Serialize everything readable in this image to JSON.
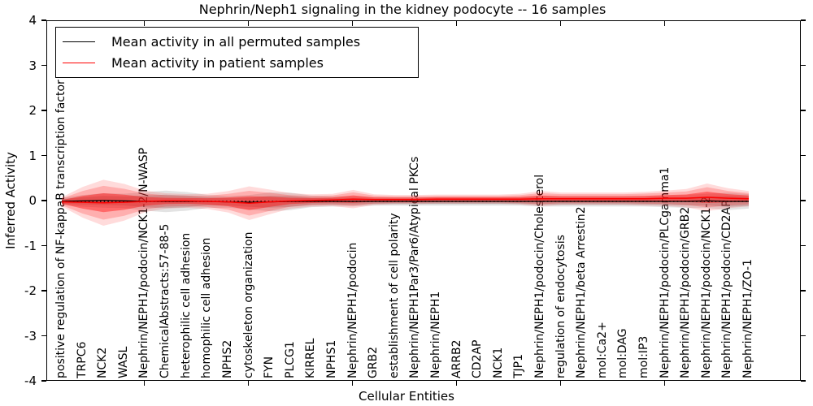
{
  "chart_data": {
    "type": "line",
    "title": "Nephrin/Neph1 signaling in the kidney podocyte -- 16 samples",
    "xlabel": "Cellular Entities",
    "ylabel": "Inferred Activity",
    "ylim": [
      -4,
      4
    ],
    "yticks": [
      4,
      3,
      2,
      1,
      0,
      -1,
      -2,
      -3,
      -4
    ],
    "yticklabels": [
      "4",
      "3",
      "2",
      "1",
      "0",
      "-1",
      "-2",
      "-3",
      "-4"
    ],
    "xtick_data_positions": [
      5,
      10,
      15,
      20,
      25,
      30
    ],
    "xtick_indices": [
      4,
      9,
      14,
      19,
      24,
      29
    ],
    "grid": false,
    "legend_position": "upper left",
    "zero_reference_line": 0,
    "categories": [
      "positive regulation of NF-kappaB transcription factor activity",
      "TRPC6",
      "NCK2",
      "WASL",
      "Nephrin/NEPH1/podocin/NCK1-2/N-WASP",
      "ChemicalAbstracts:57-88-5",
      "heterophilic cell adhesion",
      "homophilic cell adhesion",
      "NPHS2",
      "cytoskeleton organization",
      "FYN",
      "PLCG1",
      "KIRREL",
      "NPHS1",
      "Nephrin/NEPH1/podocin",
      "GRB2",
      "establishment of cell polarity",
      "Nephrin/NEPH1Par3/Par6/Atypical PKCs",
      "Nephrin/NEPH1",
      "ARRB2",
      "CD2AP",
      "NCK1",
      "TJP1",
      "Nephrin/NEPH1/podocin/Cholesterol",
      "regulation of endocytosis",
      "Nephrin/NEPH1/beta Arrestin2",
      "mol:Ca2+",
      "mol:DAG",
      "mol:IP3",
      "Nephrin/NEPH1/podocin/PLCgamma1",
      "Nephrin/NEPH1/podocin/GRB2",
      "Nephrin/NEPH1/podocin/NCK1-2",
      "Nephrin/NEPH1/podocin/CD2AP",
      "Nephrin/NEPH1/ZO-1"
    ],
    "series": [
      {
        "name": "Mean activity in all permuted samples",
        "color": "#000000",
        "values": [
          0,
          0.01,
          0.02,
          0.01,
          0,
          0,
          0,
          0,
          -0.01,
          -0.02,
          -0.01,
          0,
          0,
          0,
          0,
          0,
          0,
          0,
          0,
          0,
          0,
          0,
          0,
          0,
          0,
          0,
          0,
          0,
          0,
          0,
          0,
          0.01,
          0,
          0
        ]
      },
      {
        "name": "Mean activity in patient samples",
        "color": "#ff0000",
        "values": [
          -0.01,
          -0.02,
          -0.03,
          -0.02,
          0,
          0.01,
          0.01,
          0,
          -0.01,
          -0.04,
          -0.01,
          0.01,
          0.02,
          0.03,
          0.05,
          0.04,
          0.04,
          0.04,
          0.05,
          0.05,
          0.05,
          0.05,
          0.05,
          0.06,
          0.06,
          0.06,
          0.06,
          0.06,
          0.06,
          0.07,
          0.07,
          0.09,
          0.07,
          0.06
        ]
      }
    ],
    "bands": [
      {
        "name": "permuted samples spread",
        "color": "#808080",
        "half_widths": [
          0.05,
          0.08,
          0.1,
          0.1,
          0.13,
          0.15,
          0.13,
          0.09,
          0.08,
          0.1,
          0.13,
          0.12,
          0.08,
          0.07,
          0.07,
          0.06,
          0.06,
          0.06,
          0.06,
          0.06,
          0.06,
          0.06,
          0.06,
          0.07,
          0.07,
          0.07,
          0.07,
          0.07,
          0.07,
          0.08,
          0.09,
          0.1,
          0.12,
          0.1
        ]
      },
      {
        "name": "patient samples spread",
        "color": "#ff0000",
        "half_widths": [
          0.06,
          0.2,
          0.3,
          0.24,
          0.14,
          0.1,
          0.09,
          0.1,
          0.14,
          0.22,
          0.16,
          0.1,
          0.08,
          0.08,
          0.12,
          0.07,
          0.06,
          0.06,
          0.06,
          0.06,
          0.06,
          0.06,
          0.07,
          0.1,
          0.08,
          0.08,
          0.08,
          0.08,
          0.09,
          0.1,
          0.12,
          0.18,
          0.13,
          0.1
        ]
      }
    ]
  }
}
